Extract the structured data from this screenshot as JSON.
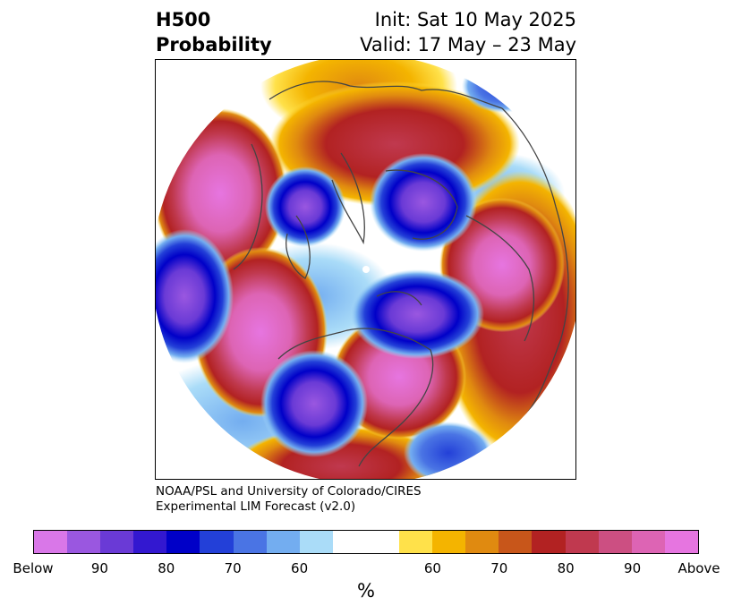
{
  "title": {
    "left_line1": "H500",
    "left_line2": "Probability",
    "right_line1": "Init: Sat 10 May 2025",
    "right_line2": "Valid: 17 May – 23 May"
  },
  "credit": {
    "line1": "NOAA/PSL and University of Colorado/CIRES",
    "line2": "Experimental LIM Forecast (v2.0)"
  },
  "colorbar": {
    "unit": "%",
    "colors": [
      "#d977e8",
      "#9a57e0",
      "#6a3ad6",
      "#3318d0",
      "#0000c8",
      "#2340d8",
      "#4a74e4",
      "#73adf0",
      "#aadcf8",
      "#ffffff",
      "#ffe14a",
      "#f4b400",
      "#e08a10",
      "#c8561a",
      "#b22222",
      "#c0394f",
      "#cc4f82",
      "#dd64b4",
      "#e675e0"
    ],
    "tick_labels": [
      "Below",
      "90",
      "80",
      "70",
      "60",
      "60",
      "70",
      "80",
      "90",
      "Above"
    ]
  },
  "map": {
    "region": "Northern Hemisphere polar stereographic"
  }
}
